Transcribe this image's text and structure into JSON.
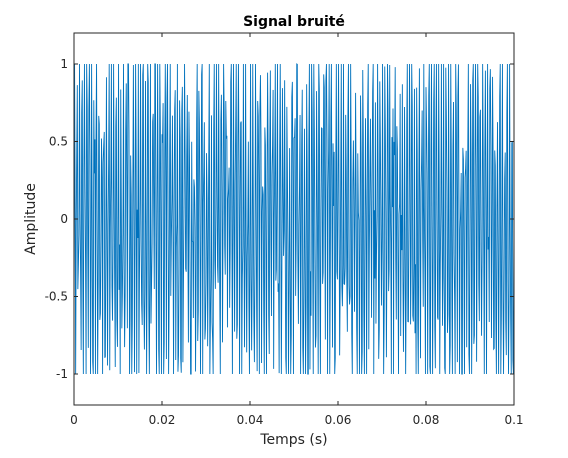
{
  "chart_data": {
    "type": "line",
    "title": "Signal bruité",
    "xlabel": "Temps (s)",
    "ylabel": "Amplitude",
    "xlim": [
      0,
      0.1
    ],
    "ylim": [
      -1.2,
      1.2
    ],
    "xticks": [
      0,
      0.02,
      0.04,
      0.06,
      0.08,
      0.1
    ],
    "xtick_labels": [
      "0",
      "0.02",
      "0.04",
      "0.06",
      "0.08",
      "0.1"
    ],
    "yticks": [
      -1,
      -0.5,
      0,
      0.5,
      1
    ],
    "ytick_labels": [
      "-1",
      "-0.5",
      "0",
      "0.5",
      "1"
    ],
    "grid": false,
    "legend": "none",
    "series": [
      {
        "color": "#0072BD",
        "signal_model": "sum of sinusoids with noise, amplitude bounded to [-1, 1]",
        "frequency_hz": 1800,
        "amplitude": 1.0,
        "sample_rate_hz": 8000
      }
    ]
  }
}
